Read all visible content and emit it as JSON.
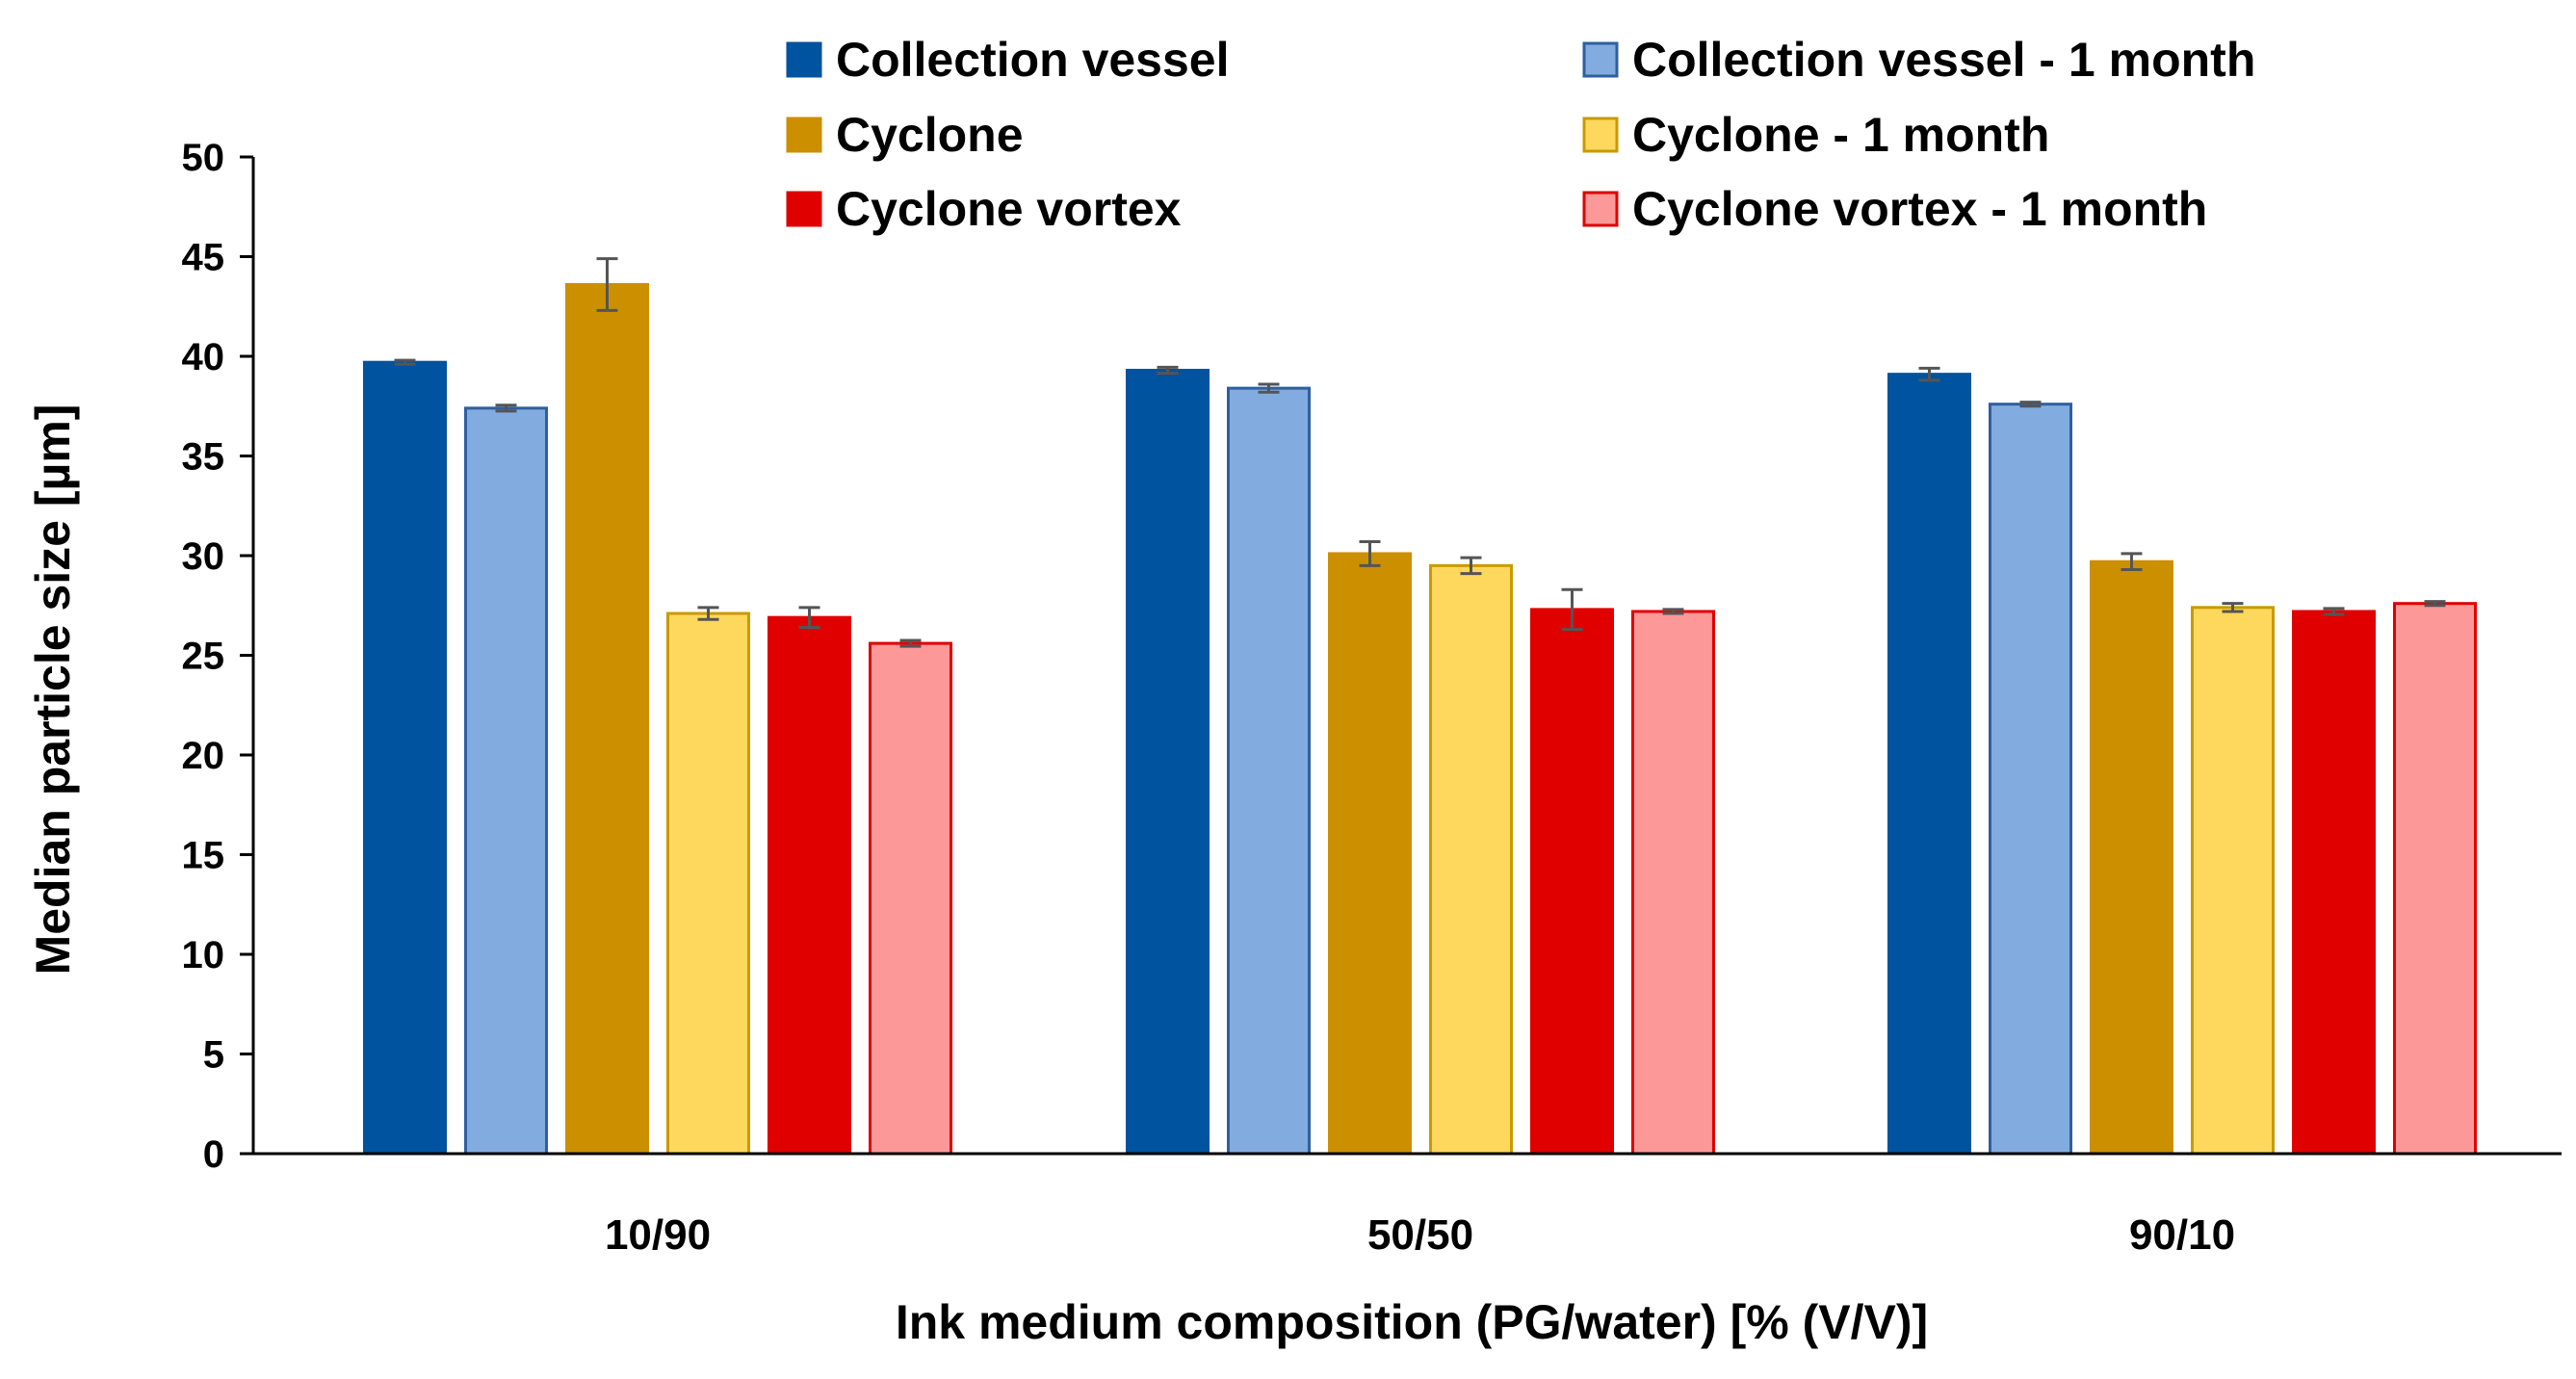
{
  "chart_data": {
    "type": "bar",
    "title": "",
    "xlabel": "Ink medium composition (PG/water) [% (V/V)]",
    "ylabel": "Median particle size [µm]",
    "ylim": [
      0,
      50
    ],
    "yticks": [
      0,
      5,
      10,
      15,
      20,
      25,
      30,
      35,
      40,
      45,
      50
    ],
    "categories": [
      "10/90",
      "50/50",
      "90/10"
    ],
    "legend_position": "top",
    "series": [
      {
        "name": "Collection vessel",
        "fill": "#00539E",
        "stroke": "#00539E",
        "values": [
          39.7,
          39.3,
          39.1
        ],
        "errors": [
          0.1,
          0.15,
          0.3
        ]
      },
      {
        "name": "Collection vessel - 1 month",
        "fill": "#82ABDF",
        "stroke": "#2F5F9E",
        "values": [
          37.4,
          38.4,
          37.6
        ],
        "errors": [
          0.15,
          0.2,
          0.1
        ]
      },
      {
        "name": "Cyclone",
        "fill": "#CC8F00",
        "stroke": "#CC8F00",
        "values": [
          43.6,
          30.1,
          29.7
        ],
        "errors": [
          1.3,
          0.6,
          0.4
        ]
      },
      {
        "name": "Cyclone - 1 month",
        "fill": "#FED85D",
        "stroke": "#C99A00",
        "values": [
          27.1,
          29.5,
          27.4
        ],
        "errors": [
          0.3,
          0.4,
          0.2
        ]
      },
      {
        "name": "Cyclone vortex",
        "fill": "#E00000",
        "stroke": "#E00000",
        "values": [
          26.9,
          27.3,
          27.2
        ],
        "errors": [
          0.5,
          1.0,
          0.15
        ]
      },
      {
        "name": "Cyclone vortex - 1 month",
        "fill": "#FD9898",
        "stroke": "#E00000",
        "values": [
          25.6,
          27.2,
          27.6
        ],
        "errors": [
          0.15,
          0.1,
          0.1
        ]
      }
    ],
    "error_bar_color": "#555555",
    "axis_color": "#000000"
  }
}
